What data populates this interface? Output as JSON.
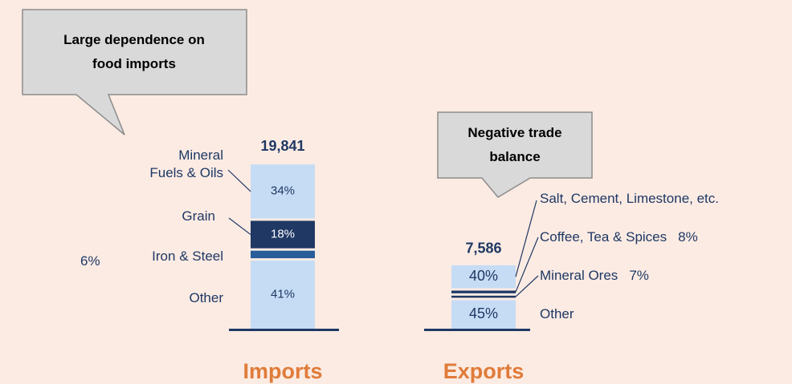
{
  "chart_data": {
    "type": "stacked_bar",
    "bars": [
      {
        "name": "Imports",
        "total": 19841,
        "total_label": "19,841",
        "segments": [
          {
            "name": "Other",
            "value": 41,
            "value_label": "41%",
            "color": "#c6dcf5"
          },
          {
            "name": "Iron & Steel",
            "value": 6,
            "value_label": "6%",
            "color": "#2a5c9a"
          },
          {
            "name": "Grain",
            "value": 18,
            "value_label": "18%",
            "color": "#1f3864"
          },
          {
            "name": "Mineral Fuels & Oils",
            "value": 34,
            "value_label": "34%",
            "color": "#c6dcf5"
          }
        ]
      },
      {
        "name": "Exports",
        "total": 7586,
        "total_label": "7,586",
        "segments": [
          {
            "name": "Other",
            "value": 45,
            "value_label": "45%",
            "color": "#c6dcf5"
          },
          {
            "name": "Mineral Ores",
            "value": 7,
            "value_label": "7%",
            "color": "#1f3864"
          },
          {
            "name": "Coffee, Tea & Spices",
            "value": 8,
            "value_label": "8%",
            "color": "#1f3864"
          },
          {
            "name": "Salt, Cement, Limestone, etc.",
            "value": 40,
            "value_label": "40%",
            "color": "#c6dcf5"
          }
        ]
      }
    ],
    "annotations": [
      "Large dependence on food imports",
      "Negative trade balance"
    ]
  }
}
